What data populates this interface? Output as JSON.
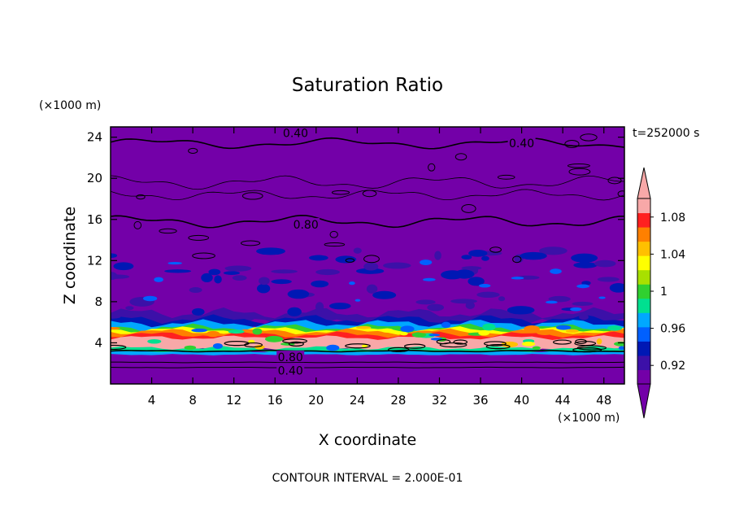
{
  "chart_data": {
    "type": "heatmap",
    "title": "Saturation Ratio",
    "xlabel": "X coordinate",
    "ylabel": "Z coordinate",
    "x_unit": "(×1000 m)",
    "y_unit": "(×1000 m)",
    "time_label": "t=252000 s",
    "footer": "CONTOUR INTERVAL = 2.000E-01",
    "xlim": [
      0,
      50
    ],
    "ylim": [
      0,
      25
    ],
    "x_ticks": [
      "4",
      "8",
      "12",
      "16",
      "20",
      "24",
      "28",
      "32",
      "36",
      "40",
      "44",
      "48"
    ],
    "y_ticks": [
      "4",
      "8",
      "12",
      "16",
      "20",
      "24"
    ],
    "colorbar": {
      "min": 0.9,
      "max": 1.1,
      "tick_labels": [
        "0.92",
        "0.96",
        "1",
        "1.04",
        "1.08"
      ],
      "tick_values": [
        0.92,
        0.96,
        1.0,
        1.04,
        1.08
      ],
      "colors": [
        "#7300a8",
        "#3c10a8",
        "#0018b4",
        "#0060ff",
        "#00a8ff",
        "#00e090",
        "#30d030",
        "#a8e000",
        "#ffff00",
        "#ffc000",
        "#ff8000",
        "#ff2020",
        "#f8a8a8"
      ]
    },
    "contour_labels": [
      {
        "text": "0.40",
        "x": 18,
        "z": 24.4
      },
      {
        "text": "0.40",
        "x": 40,
        "z": 23.4
      },
      {
        "text": "0.80",
        "x": 19,
        "z": 15.5
      },
      {
        "text": "0.80",
        "x": 17.5,
        "z": 2.6
      },
      {
        "text": "0.40",
        "x": 17.5,
        "z": 1.3
      }
    ]
  }
}
